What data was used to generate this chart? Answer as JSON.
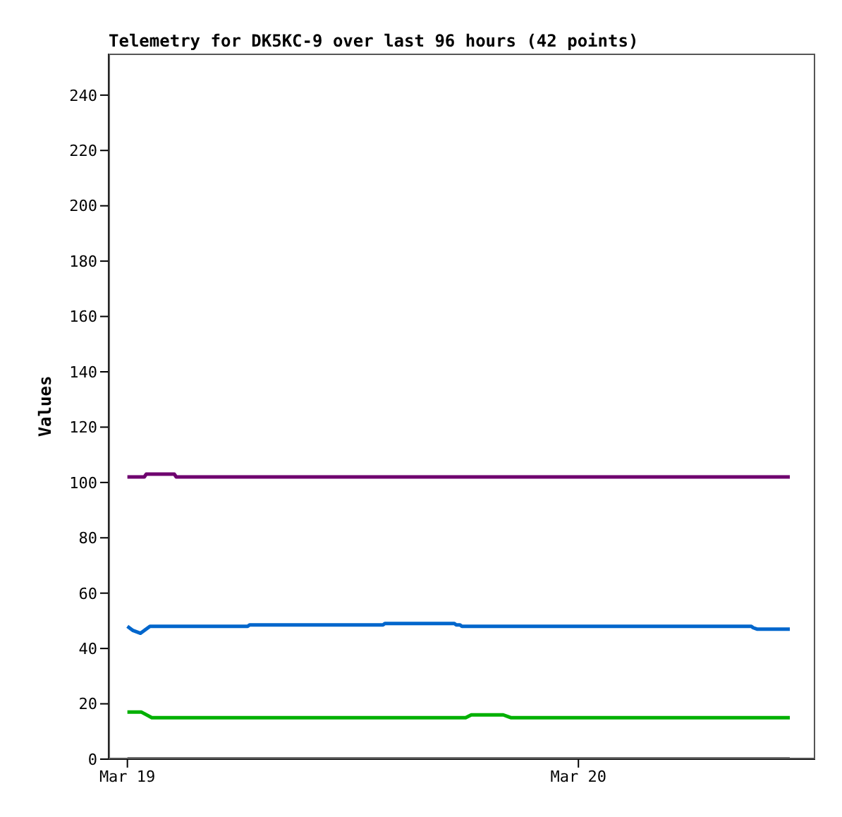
{
  "chart_data": {
    "type": "line",
    "title": "Telemetry for DK5KC-9 over last 96 hours (42 points)",
    "ylabel": "Values",
    "xlim": [
      "--03-18T23:00",
      "--03-20T12:36"
    ],
    "xticks": [
      {
        "value": "--03-19",
        "label": "Mar 19"
      },
      {
        "value": "--03-20",
        "label": "Mar 20"
      }
    ],
    "ylim": [
      0,
      255
    ],
    "yticks": [
      0,
      20,
      40,
      60,
      80,
      100,
      120,
      140,
      160,
      180,
      200,
      220,
      240
    ],
    "series": [
      {
        "color": "#6f006f",
        "x": [
          "--03-19T00:00",
          "--03-19T00:54",
          "--03-19T01:00",
          "--03-19T02:30",
          "--03-19T02:36",
          "--03-20T11:15"
        ],
        "values": [
          102,
          102,
          103,
          103,
          102,
          102
        ]
      },
      {
        "color": "#0066cc",
        "x": [
          "--03-19T00:00",
          "--03-19T00:18",
          "--03-19T00:42",
          "--03-19T01:12",
          "--03-19T06:24",
          "--03-19T06:30",
          "--03-19T13:36",
          "--03-19T13:42",
          "--03-19T17:24",
          "--03-19T17:30",
          "--03-19T17:42",
          "--03-19T17:48",
          "--03-20T09:12",
          "--03-20T09:18",
          "--03-20T09:30",
          "--03-20T11:15"
        ],
        "values": [
          48,
          46.5,
          45.5,
          48,
          48,
          48.5,
          48.5,
          49,
          49,
          48.5,
          48.5,
          48,
          48,
          47.5,
          47,
          47
        ]
      },
      {
        "color": "#00b000",
        "x": [
          "--03-19T00:00",
          "--03-19T00:45",
          "--03-19T01:18",
          "--03-19T18:00",
          "--03-19T18:18",
          "--03-19T20:00",
          "--03-19T20:24",
          "--03-20T11:15"
        ],
        "values": [
          17,
          17,
          15,
          15,
          16,
          16,
          15,
          15
        ]
      },
      {
        "color": "#000000",
        "x": [
          "--03-19T00:00",
          "--03-20T11:15"
        ],
        "values": [
          0,
          0
        ]
      }
    ]
  }
}
